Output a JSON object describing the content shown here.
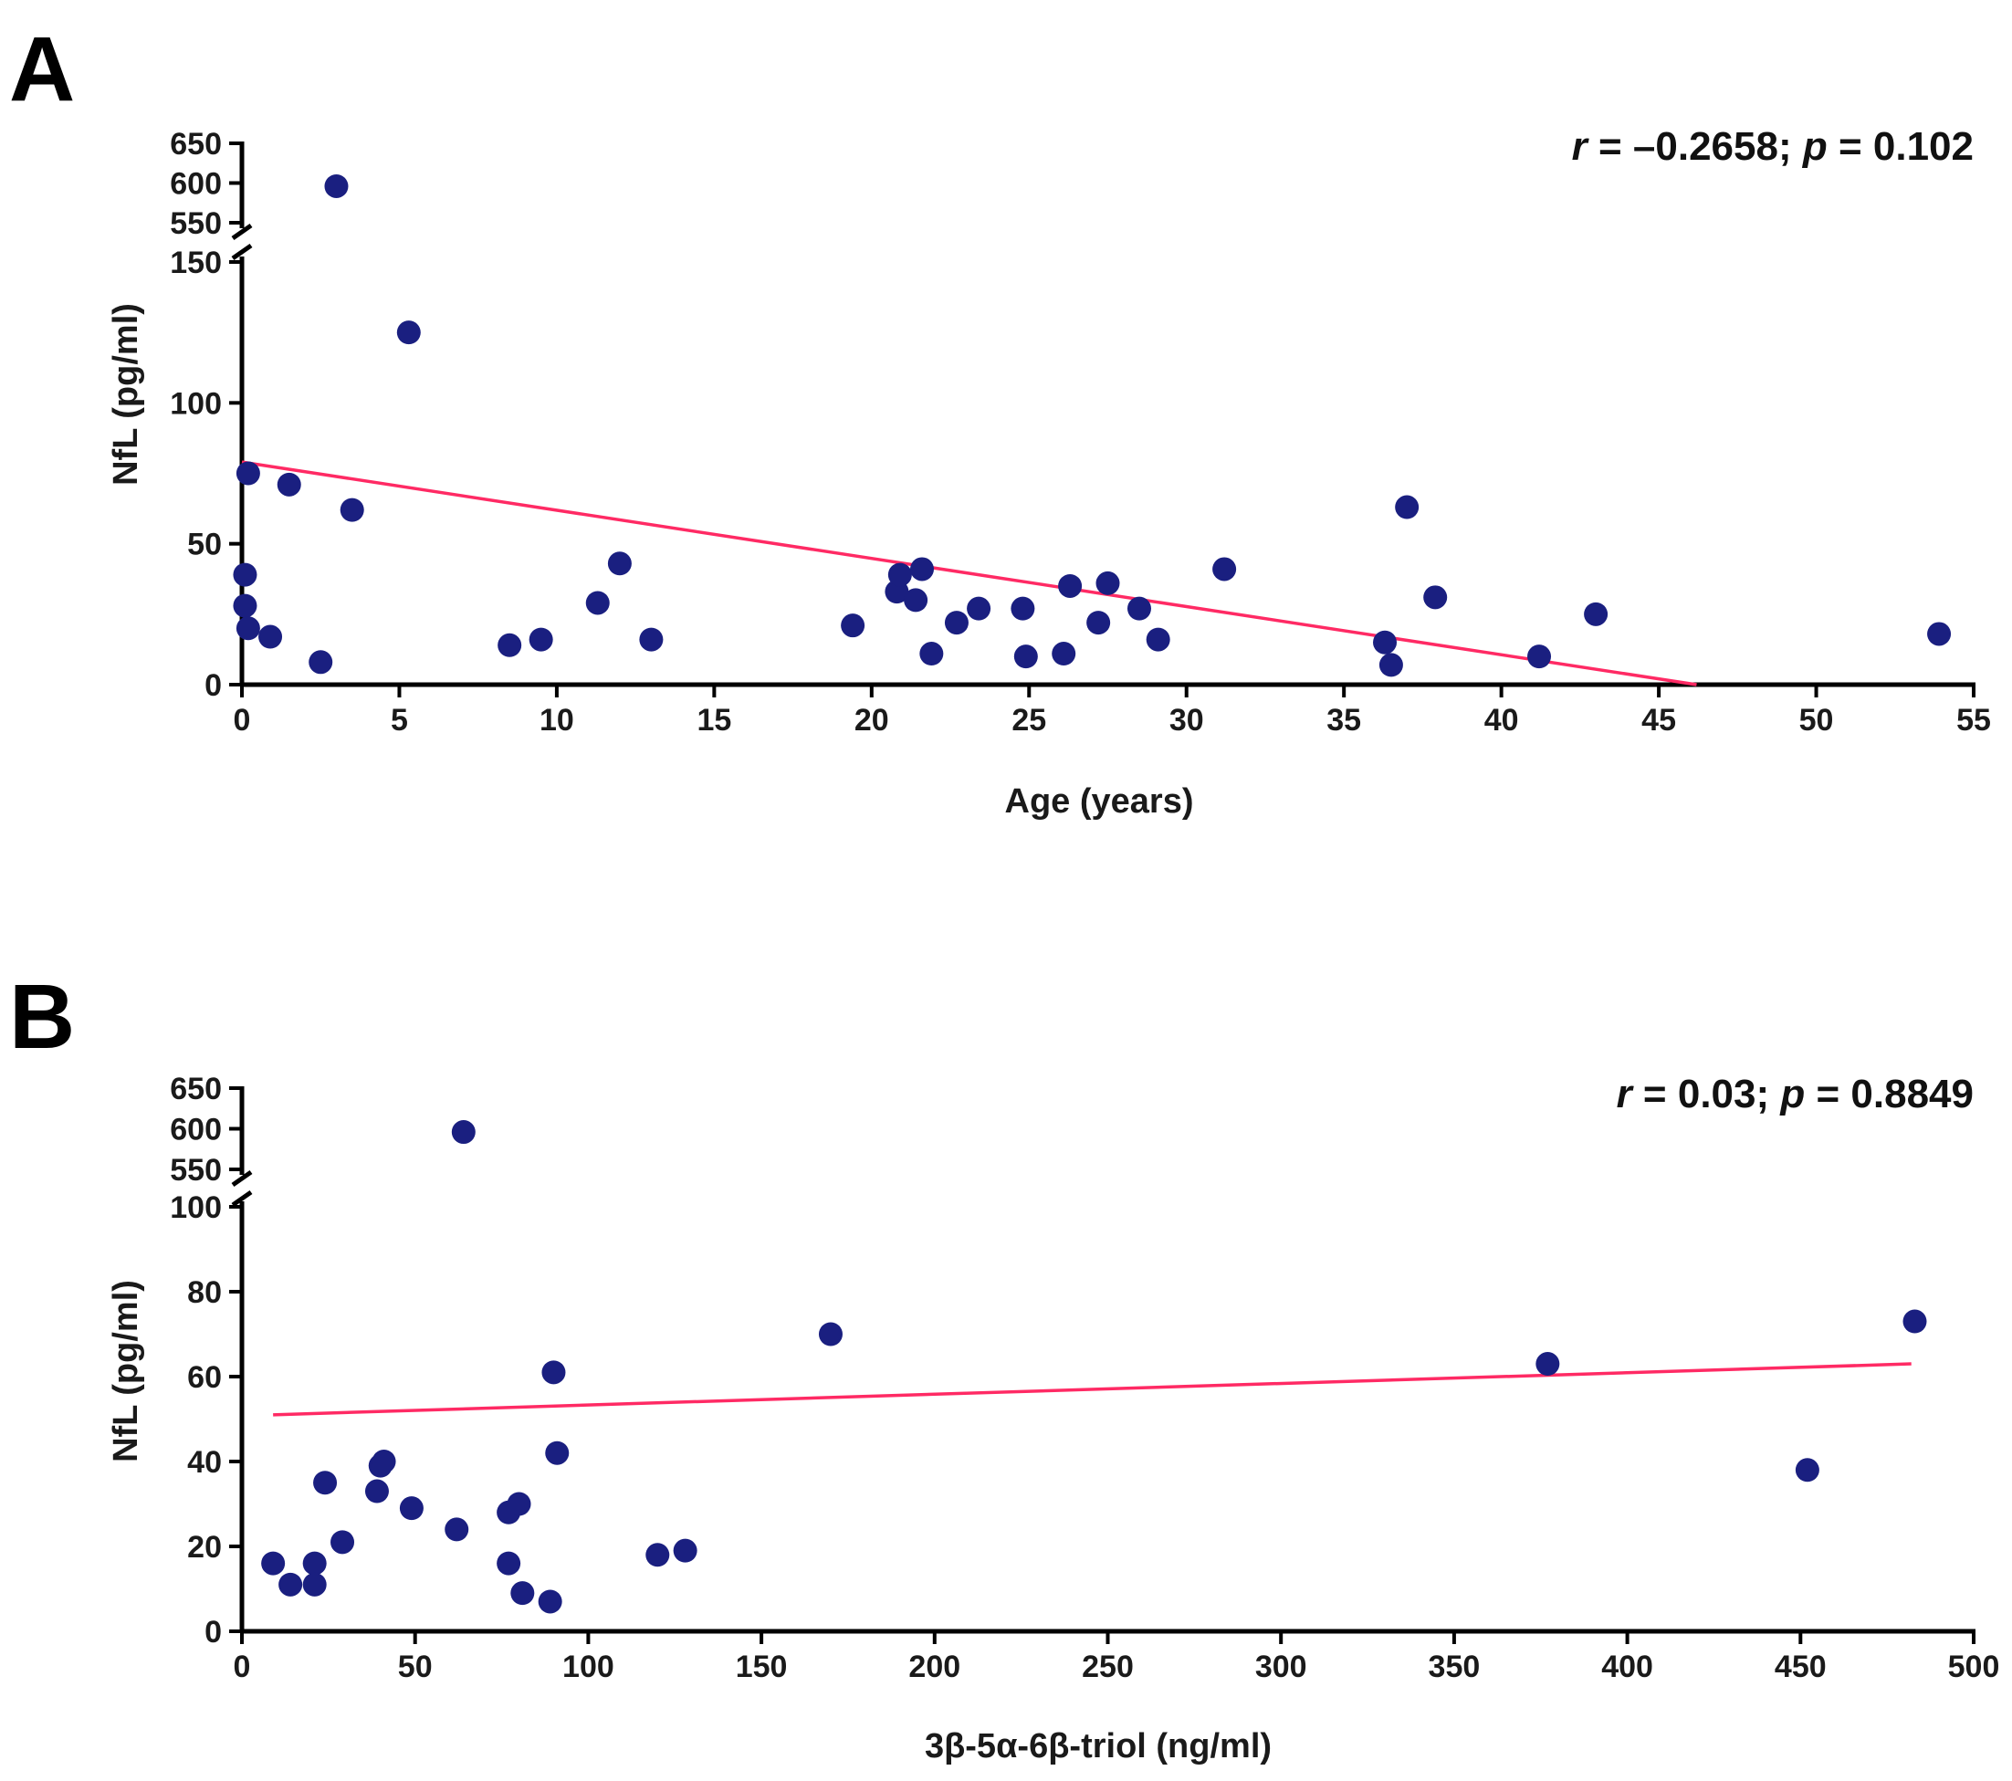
{
  "colors": {
    "point": "#1a1f80",
    "fit_line": "#ff2a64",
    "axis": "#000000"
  },
  "chart_data": [
    {
      "panel": "A",
      "type": "scatter",
      "xlabel": "Age (years)",
      "ylabel": "NfL (pg/ml)",
      "stat_text": {
        "r_symbol": "r",
        "r_part": " = –0.2658; ",
        "p_symbol": "p",
        "p_part": " = 0.102"
      },
      "xlim": [
        0,
        55
      ],
      "x_ticks": [
        0,
        5,
        10,
        15,
        20,
        25,
        30,
        35,
        40,
        45,
        50,
        55
      ],
      "y_lower_range": [
        0,
        150
      ],
      "y_lower_ticks": [
        0,
        50,
        100,
        150
      ],
      "y_upper_range": [
        550,
        650
      ],
      "y_upper_ticks": [
        550,
        600,
        650
      ],
      "y_axis_break": true,
      "points": [
        {
          "x": 3.0,
          "y": 596
        },
        {
          "x": 5.3,
          "y": 125
        },
        {
          "x": 0.2,
          "y": 75
        },
        {
          "x": 1.5,
          "y": 71
        },
        {
          "x": 3.5,
          "y": 62
        },
        {
          "x": 0.1,
          "y": 39
        },
        {
          "x": 0.1,
          "y": 28
        },
        {
          "x": 0.2,
          "y": 20
        },
        {
          "x": 0.9,
          "y": 17
        },
        {
          "x": 2.5,
          "y": 8
        },
        {
          "x": 8.5,
          "y": 14
        },
        {
          "x": 9.5,
          "y": 16
        },
        {
          "x": 11.3,
          "y": 29
        },
        {
          "x": 12.0,
          "y": 43
        },
        {
          "x": 13.0,
          "y": 16
        },
        {
          "x": 19.4,
          "y": 21
        },
        {
          "x": 20.8,
          "y": 33
        },
        {
          "x": 20.9,
          "y": 39
        },
        {
          "x": 21.4,
          "y": 30
        },
        {
          "x": 21.6,
          "y": 41
        },
        {
          "x": 21.9,
          "y": 11
        },
        {
          "x": 22.7,
          "y": 22
        },
        {
          "x": 23.4,
          "y": 27
        },
        {
          "x": 24.8,
          "y": 27
        },
        {
          "x": 24.9,
          "y": 10
        },
        {
          "x": 26.1,
          "y": 11
        },
        {
          "x": 26.3,
          "y": 35
        },
        {
          "x": 27.2,
          "y": 22
        },
        {
          "x": 27.5,
          "y": 36
        },
        {
          "x": 28.5,
          "y": 27
        },
        {
          "x": 29.1,
          "y": 16
        },
        {
          "x": 31.2,
          "y": 41
        },
        {
          "x": 36.3,
          "y": 15
        },
        {
          "x": 36.5,
          "y": 7
        },
        {
          "x": 37.0,
          "y": 63
        },
        {
          "x": 37.9,
          "y": 31
        },
        {
          "x": 41.2,
          "y": 10
        },
        {
          "x": 43.0,
          "y": 25
        },
        {
          "x": 53.9,
          "y": 18
        }
      ],
      "fit_line": {
        "x": [
          0,
          46.2
        ],
        "y": [
          79,
          0
        ]
      }
    },
    {
      "panel": "B",
      "type": "scatter",
      "xlabel": "3β-5α-6β-triol (ng/ml)",
      "ylabel": "NfL (pg/ml)",
      "stat_text": {
        "r_symbol": "r",
        "r_part": " = 0.03; ",
        "p_symbol": "p",
        "p_part": " = 0.8849"
      },
      "xlim": [
        0,
        500
      ],
      "x_ticks": [
        0,
        50,
        100,
        150,
        200,
        250,
        300,
        350,
        400,
        450,
        500
      ],
      "y_lower_range": [
        0,
        100
      ],
      "y_lower_ticks": [
        0,
        20,
        40,
        60,
        80,
        100
      ],
      "y_upper_range": [
        550,
        650
      ],
      "y_upper_ticks": [
        550,
        600,
        650
      ],
      "y_axis_break": true,
      "points": [
        {
          "x": 64,
          "y": 596
        },
        {
          "x": 9,
          "y": 16
        },
        {
          "x": 14,
          "y": 11
        },
        {
          "x": 21,
          "y": 16
        },
        {
          "x": 21,
          "y": 11
        },
        {
          "x": 24,
          "y": 35
        },
        {
          "x": 29,
          "y": 21
        },
        {
          "x": 39,
          "y": 33
        },
        {
          "x": 40,
          "y": 39
        },
        {
          "x": 41,
          "y": 40
        },
        {
          "x": 49,
          "y": 29
        },
        {
          "x": 62,
          "y": 24
        },
        {
          "x": 77,
          "y": 16
        },
        {
          "x": 77,
          "y": 28
        },
        {
          "x": 80,
          "y": 30
        },
        {
          "x": 81,
          "y": 9
        },
        {
          "x": 89,
          "y": 7
        },
        {
          "x": 90,
          "y": 61
        },
        {
          "x": 91,
          "y": 42
        },
        {
          "x": 120,
          "y": 18
        },
        {
          "x": 128,
          "y": 19
        },
        {
          "x": 170,
          "y": 70
        },
        {
          "x": 377,
          "y": 63
        },
        {
          "x": 452,
          "y": 38
        },
        {
          "x": 483,
          "y": 73
        }
      ],
      "fit_line": {
        "x": [
          9,
          482
        ],
        "y": [
          51,
          63
        ]
      }
    }
  ]
}
